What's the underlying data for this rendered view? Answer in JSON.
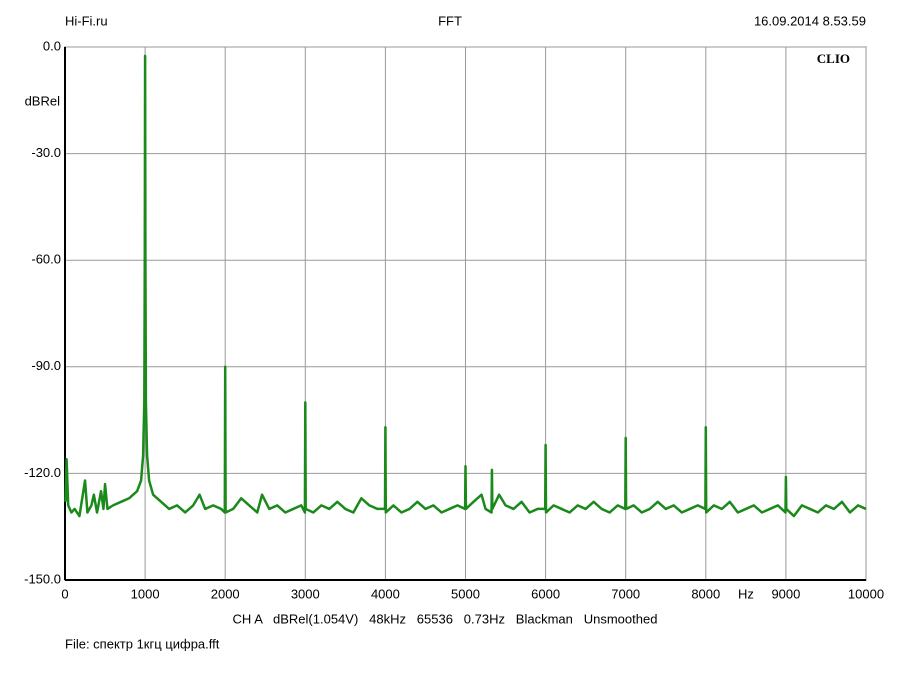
{
  "header": {
    "left": "Hi-Fi.ru",
    "right": "16.09.2014 8.53.59"
  },
  "watermark": "CLIO",
  "footer": {
    "settings": "CH A   dBRel(1.054V)   48kHz   65536   0.73Hz   Blackman   Unsmoothed",
    "file": "File: спектр 1кгц цифра.fft"
  },
  "chart_data": {
    "type": "line",
    "title": "FFT",
    "x_label": "Hz",
    "y_label": "dBRel",
    "color": "#1a8a1a",
    "grid": true,
    "xlim": [
      0,
      10000
    ],
    "xticks": [
      0,
      1000,
      2000,
      3000,
      4000,
      5000,
      6000,
      7000,
      8000,
      9000,
      10000
    ],
    "ylim": [
      -150,
      0
    ],
    "yticks": [
      {
        "value": 0,
        "label": "0.0"
      },
      {
        "value": -30,
        "label": "-30.0"
      },
      {
        "value": -60,
        "label": "-60.0"
      },
      {
        "value": -90,
        "label": "-90.0"
      },
      {
        "value": -120,
        "label": "-120.0"
      },
      {
        "value": -150,
        "label": "-150.0"
      }
    ],
    "x": [
      5,
      20,
      40,
      80,
      120,
      180,
      250,
      280,
      330,
      360,
      400,
      450,
      480,
      500,
      530,
      600,
      700,
      800,
      900,
      950,
      975,
      990,
      996,
      1000,
      1004,
      1010,
      1025,
      1050,
      1100,
      1200,
      1300,
      1400,
      1500,
      1600,
      1680,
      1750,
      1850,
      1950,
      1995,
      2000,
      2005,
      2100,
      2200,
      2300,
      2400,
      2460,
      2550,
      2650,
      2750,
      2850,
      2950,
      2995,
      3000,
      3005,
      3100,
      3200,
      3300,
      3400,
      3500,
      3600,
      3700,
      3800,
      3900,
      3995,
      4000,
      4005,
      4100,
      4200,
      4300,
      4400,
      4500,
      4600,
      4700,
      4800,
      4900,
      4995,
      5000,
      5005,
      5100,
      5200,
      5250,
      5325,
      5330,
      5335,
      5420,
      5500,
      5600,
      5700,
      5800,
      5900,
      5995,
      6000,
      6005,
      6100,
      6200,
      6300,
      6400,
      6500,
      6600,
      6700,
      6800,
      6900,
      6995,
      7000,
      7005,
      7100,
      7200,
      7300,
      7400,
      7500,
      7600,
      7700,
      7800,
      7900,
      7995,
      8000,
      8005,
      8100,
      8200,
      8300,
      8400,
      8500,
      8600,
      8700,
      8800,
      8900,
      8995,
      9000,
      9005,
      9100,
      9200,
      9300,
      9400,
      9500,
      9600,
      9700,
      9800,
      9900,
      10000
    ],
    "values": [
      -128,
      -116,
      -129,
      -131,
      -130,
      -132,
      -122,
      -131,
      -129,
      -126,
      -131,
      -125,
      -130,
      -123,
      -130,
      -129,
      -128,
      -127,
      -125,
      -122,
      -115,
      -100,
      -60,
      -2.5,
      -60,
      -100,
      -115,
      -122,
      -126,
      -128,
      -130,
      -129,
      -131,
      -129,
      -126,
      -130,
      -129,
      -130,
      -131,
      -90,
      -131,
      -130,
      -127,
      -129,
      -131,
      -126,
      -130,
      -129,
      -131,
      -130,
      -129,
      -131,
      -100,
      -130,
      -131,
      -129,
      -130,
      -128,
      -130,
      -131,
      -127,
      -129,
      -130,
      -130,
      -107,
      -131,
      -129,
      -131,
      -130,
      -128,
      -130,
      -129,
      -131,
      -130,
      -129,
      -130,
      -118,
      -130,
      -128,
      -126,
      -130,
      -131,
      -119,
      -130,
      -126,
      -129,
      -130,
      -128,
      -131,
      -130,
      -130,
      -112,
      -131,
      -129,
      -130,
      -131,
      -129,
      -130,
      -128,
      -130,
      -131,
      -129,
      -130,
      -110,
      -130,
      -129,
      -131,
      -130,
      -128,
      -130,
      -129,
      -131,
      -130,
      -129,
      -130,
      -107,
      -131,
      -129,
      -130,
      -128,
      -131,
      -130,
      -129,
      -131,
      -130,
      -129,
      -131,
      -121,
      -130,
      -132,
      -129,
      -130,
      -131,
      -129,
      -130,
      -128,
      -131,
      -129,
      -130
    ]
  }
}
